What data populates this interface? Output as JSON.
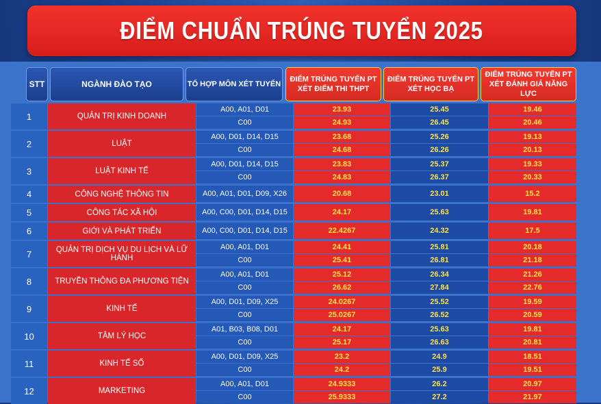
{
  "title": "ĐIỂM CHUẨN TRÚNG TUYỂN 2025",
  "headers": {
    "stt": "STT",
    "major": "NGÀNH ĐÀO TẠO",
    "combo": "TỔ HỢP MÔN XÉT TUYỂN",
    "thpt_line1": "ĐIỂM TRÚNG TUYỂN PT",
    "thpt_line2": "XÉT ĐIỂM THI THPT",
    "hb_line1": "ĐIỂM TRÚNG TUYỂN PT",
    "hb_line2": "XÉT HỌC BẠ",
    "nl_line1": "ĐIỂM TRÚNG TUYỂN PT",
    "nl_line2": "XÉT ĐÁNH GIÁ NĂNG LỰC"
  },
  "rows": [
    {
      "stt": "1",
      "major": "QUẢN TRỊ KINH DOANH",
      "subs": [
        {
          "combo": "A00, A01, D01",
          "thpt": "23.93",
          "hb": "25.45",
          "nl": "19.46"
        },
        {
          "combo": "C00",
          "thpt": "24.93",
          "hb": "26.45",
          "nl": "20.46"
        }
      ]
    },
    {
      "stt": "2",
      "major": "LUẬT",
      "subs": [
        {
          "combo": "A00, D01, D14, D15",
          "thpt": "23.68",
          "hb": "25.26",
          "nl": "19.13"
        },
        {
          "combo": "C00",
          "thpt": "24.68",
          "hb": "26.26",
          "nl": "20.13"
        }
      ]
    },
    {
      "stt": "3",
      "major": "LUẬT KINH TẾ",
      "subs": [
        {
          "combo": "A00, D01, D14, D15",
          "thpt": "23.83",
          "hb": "25.37",
          "nl": "19.33"
        },
        {
          "combo": "C00",
          "thpt": "24.83",
          "hb": "26.37",
          "nl": "20.33"
        }
      ]
    },
    {
      "stt": "4",
      "major": "CÔNG NGHỆ THÔNG TIN",
      "subs": [
        {
          "combo": "A00, A01, D01, D09, X26",
          "thpt": "20.68",
          "hb": "23.01",
          "nl": "15.2"
        }
      ]
    },
    {
      "stt": "5",
      "major": "CÔNG TÁC XÃ HỘI",
      "subs": [
        {
          "combo": "A00, C00, D01, D14, D15",
          "thpt": "24.17",
          "hb": "25.63",
          "nl": "19.81"
        }
      ]
    },
    {
      "stt": "6",
      "major": "GIỚI VÀ PHÁT TRIỂN",
      "subs": [
        {
          "combo": "A00, C00, D01, D14, D15",
          "thpt": "22.4267",
          "hb": "24.32",
          "nl": "17.5"
        }
      ]
    },
    {
      "stt": "7",
      "major": "QUẢN TRỊ DỊCH VỤ DU LỊCH VÀ LỮ HÀNH",
      "subs": [
        {
          "combo": "A00, A01, D01",
          "thpt": "24.41",
          "hb": "25.81",
          "nl": "20.18"
        },
        {
          "combo": "C00",
          "thpt": "25.41",
          "hb": "26.81",
          "nl": "21.18"
        }
      ]
    },
    {
      "stt": "8",
      "major": "TRUYỀN THÔNG ĐA PHƯƠNG TIỆN",
      "subs": [
        {
          "combo": "A00, A01, D01",
          "thpt": "25.12",
          "hb": "26.34",
          "nl": "21.26"
        },
        {
          "combo": "C00",
          "thpt": "26.62",
          "hb": "27.84",
          "nl": "22.76"
        }
      ]
    },
    {
      "stt": "9",
      "major": "KINH TẾ",
      "subs": [
        {
          "combo": "A00, D01, D09, X25",
          "thpt": "24.0267",
          "hb": "25.52",
          "nl": "19.59"
        },
        {
          "combo": "C00",
          "thpt": "25.0267",
          "hb": "26.52",
          "nl": "20.59"
        }
      ]
    },
    {
      "stt": "10",
      "major": "TÂM LÝ HỌC",
      "subs": [
        {
          "combo": "A01, B03, B08, D01",
          "thpt": "24.17",
          "hb": "25.63",
          "nl": "19.81"
        },
        {
          "combo": "C00",
          "thpt": "25.17",
          "hb": "26.63",
          "nl": "20.81"
        }
      ]
    },
    {
      "stt": "11",
      "major": "KINH TẾ SỐ",
      "subs": [
        {
          "combo": "A00, D01, D09, X25",
          "thpt": "23.2",
          "hb": "24.9",
          "nl": "18.51"
        },
        {
          "combo": "C00",
          "thpt": "24.2",
          "hb": "25.9",
          "nl": "19.51"
        }
      ]
    },
    {
      "stt": "12",
      "major": "MARKETING",
      "subs": [
        {
          "combo": "A00, A01, D01",
          "thpt": "24.9333",
          "hb": "26.2",
          "nl": "20.97"
        },
        {
          "combo": "C00",
          "thpt": "25.9333",
          "hb": "27.2",
          "nl": "21.97"
        }
      ]
    }
  ]
}
